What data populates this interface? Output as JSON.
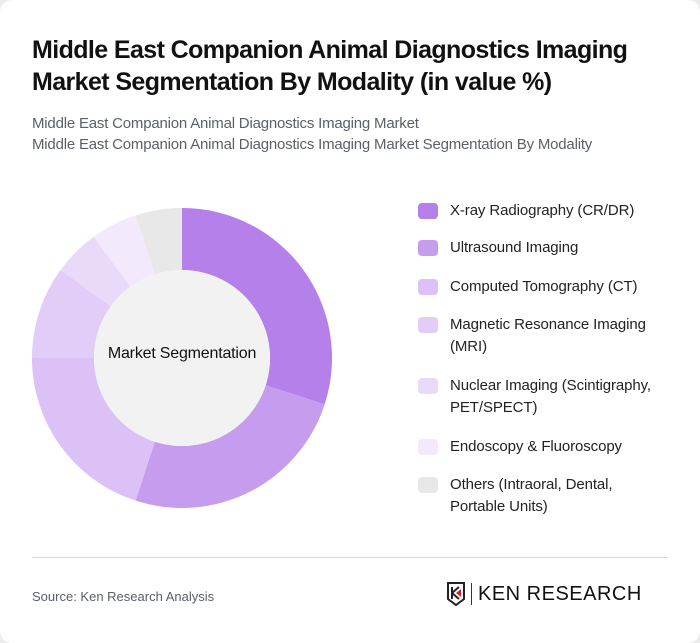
{
  "header": {
    "title": "Middle East Companion Animal Diagnostics Imaging Market Segmentation By Modality (in value %)",
    "subtitle_line1": "Middle East Companion Animal Diagnostics Imaging Market",
    "subtitle_line2": "Middle East Companion Animal Diagnostics Imaging Market Segmentation By Modality"
  },
  "chart": {
    "center_label": "Market Segmentation"
  },
  "legend": {
    "items": [
      {
        "label": "X-ray Radiography (CR/DR)",
        "color": "#b580ea"
      },
      {
        "label": "Ultrasound Imaging",
        "color": "#c69cef"
      },
      {
        "label": "Computed Tomography (CT)",
        "color": "#dbc1f6"
      },
      {
        "label": "Magnetic Resonance Imaging (MRI)",
        "color": "#e1cdf7"
      },
      {
        "label": "Nuclear Imaging (Scintigraphy, PET/SPECT)",
        "color": "#e9dafa"
      },
      {
        "label": "Endoscopy & Fluoroscopy",
        "color": "#f2eafc"
      },
      {
        "label": "Others (Intraoral, Dental, Portable Units)",
        "color": "#e8e8e8"
      }
    ]
  },
  "footer": {
    "source": "Source: Ken Research Analysis",
    "logo_text": "KEN RESEARCH"
  },
  "chart_data": {
    "type": "pie",
    "title": "Middle East Companion Animal Diagnostics Imaging Market Segmentation By Modality (in value %)",
    "subtitle": "Middle East Companion Animal Diagnostics Imaging Market Segmentation By Modality",
    "center_label": "Market Segmentation",
    "donut": true,
    "categories": [
      "X-ray Radiography (CR/DR)",
      "Ultrasound Imaging",
      "Computed Tomography (CT)",
      "Magnetic Resonance Imaging (MRI)",
      "Nuclear Imaging (Scintigraphy, PET/SPECT)",
      "Endoscopy & Fluoroscopy",
      "Others (Intraoral, Dental, Portable Units)"
    ],
    "values": [
      30,
      25,
      20,
      10,
      5,
      5,
      5
    ],
    "colors": [
      "#b580ea",
      "#c69cef",
      "#dbc1f6",
      "#e1cdf7",
      "#e9dafa",
      "#f2eafc",
      "#e8e8e8"
    ],
    "legend_position": "right",
    "unit": "%"
  }
}
